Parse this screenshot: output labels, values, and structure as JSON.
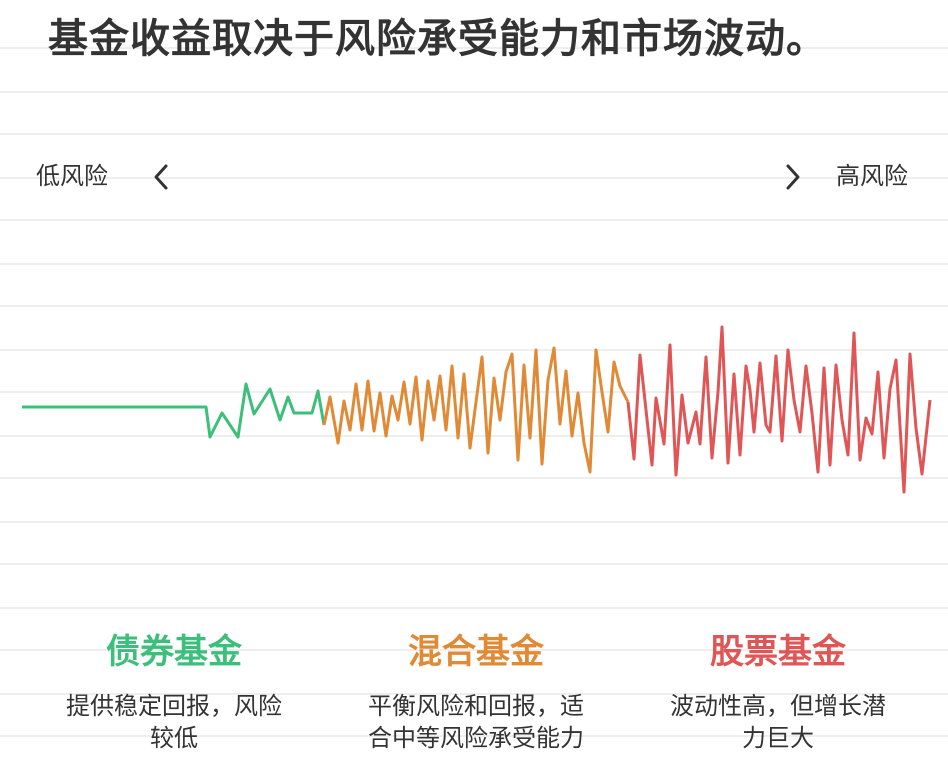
{
  "title": "基金收益取决于风险承受能力和市场波动。",
  "risk_scale": {
    "low_label": "低风险",
    "high_label": "高风险",
    "left_icon": "chevron-left-icon",
    "right_icon": "chevron-right-icon"
  },
  "colors": {
    "bond": "#3cbf7a",
    "mixed": "#e08a35",
    "stock": "#e05555",
    "text": "#333333",
    "grid": "#eeeeee"
  },
  "categories": [
    {
      "key": "bond",
      "title": "债券基金",
      "desc_line1": "提供稳定回报，风险",
      "desc_line2": "较低"
    },
    {
      "key": "mixed",
      "title": "混合基金",
      "desc_line1": "平衡风险和回报，适",
      "desc_line2": "合中等风险承受能力"
    },
    {
      "key": "stock",
      "title": "股票基金",
      "desc_line1": "波动性高，但增长潜",
      "desc_line2": "力巨大"
    }
  ]
}
